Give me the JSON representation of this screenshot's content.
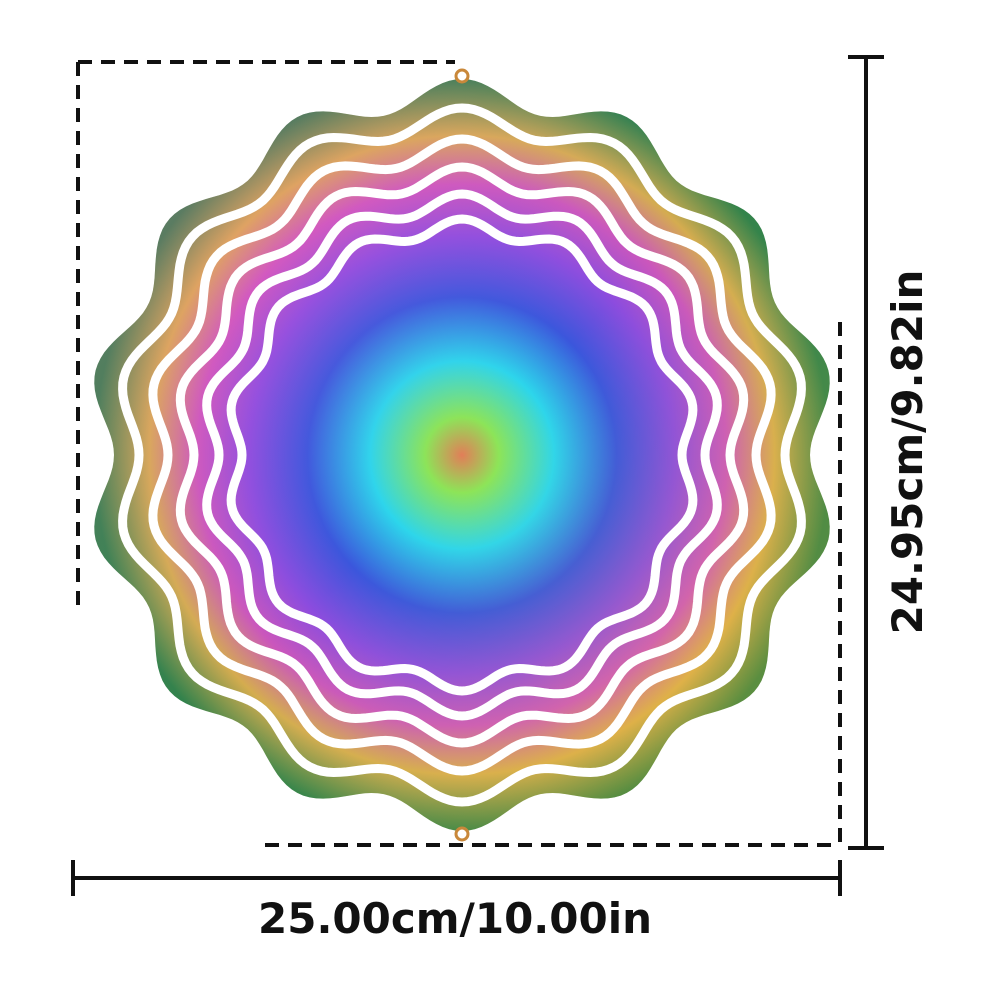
{
  "dimensions": {
    "width_label": "25.00cm/10.00in",
    "height_label": "24.95cm/9.82in"
  }
}
